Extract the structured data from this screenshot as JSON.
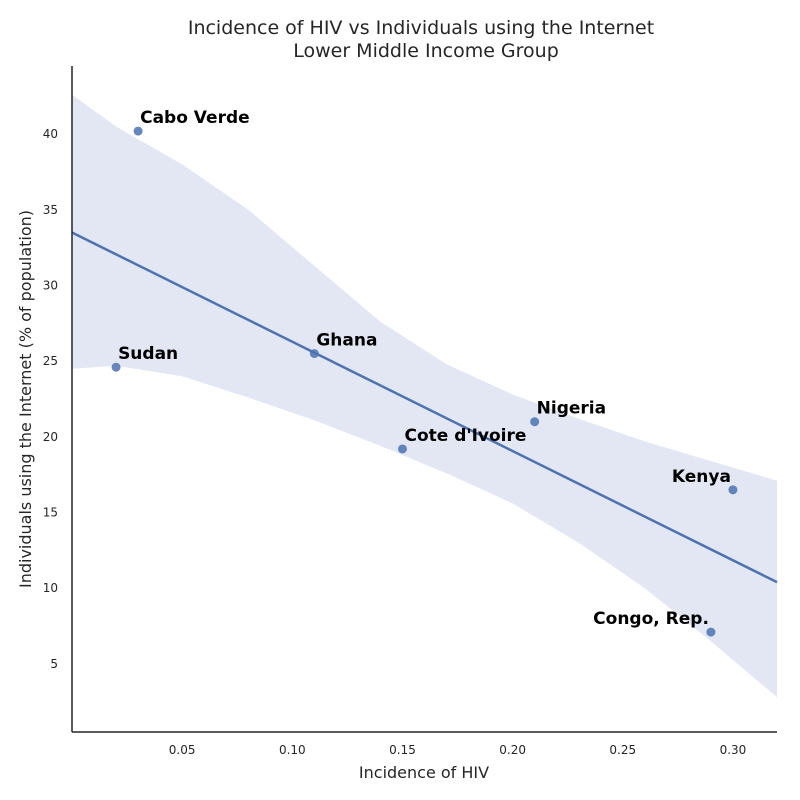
{
  "chart_data": {
    "type": "scatter",
    "title_line1": "Incidence of HIV vs Individuals using the Internet",
    "title_line2": "Lower Middle Income Group",
    "xlabel": "Incidence of HIV",
    "ylabel": "Individuals using the Internet (% of population)",
    "xlim": [
      0.0,
      0.32
    ],
    "ylim": [
      0.5,
      44.5
    ],
    "xticks": [
      0.05,
      0.1,
      0.15,
      0.2,
      0.25,
      0.3
    ],
    "xtick_labels": [
      "0.05",
      "0.10",
      "0.15",
      "0.20",
      "0.25",
      "0.30"
    ],
    "yticks": [
      5,
      10,
      15,
      20,
      25,
      30,
      35,
      40
    ],
    "ytick_labels": [
      "5",
      "10",
      "15",
      "20",
      "25",
      "30",
      "35",
      "40"
    ],
    "grid": false,
    "points": [
      {
        "label": "Cabo Verde",
        "x": 0.03,
        "y": 40.2
      },
      {
        "label": "Sudan",
        "x": 0.02,
        "y": 24.6
      },
      {
        "label": "Ghana",
        "x": 0.11,
        "y": 25.5
      },
      {
        "label": "Cote d'Ivoire",
        "x": 0.15,
        "y": 19.2
      },
      {
        "label": "Nigeria",
        "x": 0.21,
        "y": 21.0
      },
      {
        "label": "Kenya",
        "x": 0.3,
        "y": 16.5
      },
      {
        "label": "Congo, Rep.",
        "x": 0.29,
        "y": 7.1
      }
    ],
    "regression_line": {
      "x": [
        0.0,
        0.32
      ],
      "y": [
        33.5,
        10.4
      ]
    },
    "confidence_band": {
      "x": [
        0.0,
        0.02,
        0.05,
        0.08,
        0.11,
        0.14,
        0.17,
        0.2,
        0.23,
        0.26,
        0.29,
        0.32
      ],
      "upper": [
        42.6,
        40.5,
        38.0,
        35.0,
        31.3,
        27.6,
        24.8,
        22.8,
        21.2,
        19.7,
        18.4,
        17.1
      ],
      "lower": [
        24.5,
        24.7,
        24.0,
        22.6,
        21.1,
        19.4,
        17.6,
        15.6,
        13.0,
        10.0,
        6.5,
        2.8
      ]
    },
    "colors": {
      "points": "#4c72b0",
      "line": "#4c72b0",
      "band": "#e2e7f3",
      "axis": "#262626"
    }
  }
}
